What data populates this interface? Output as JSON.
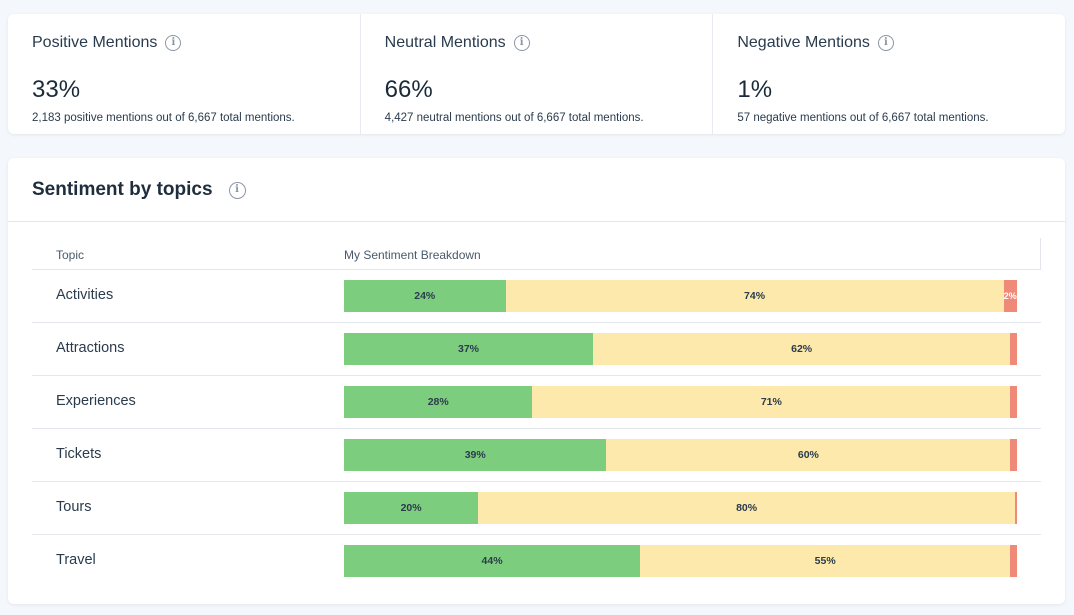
{
  "metrics": [
    {
      "title": "Positive Mentions",
      "value": "33%",
      "desc": "2,183 positive mentions out of 6,667 total mentions."
    },
    {
      "title": "Neutral Mentions",
      "value": "66%",
      "desc": "4,427 neutral mentions out of 6,667 total mentions."
    },
    {
      "title": "Negative Mentions",
      "value": "1%",
      "desc": "57 negative mentions out of 6,667 total mentions."
    }
  ],
  "panel": {
    "title": "Sentiment by topics",
    "columns": {
      "topic": "Topic",
      "breakdown": "My Sentiment Breakdown"
    }
  },
  "colors": {
    "positive": "#7dcd7e",
    "neutral": "#fde9ac",
    "negative": "#f08a78"
  },
  "rows": [
    {
      "topic": "Activities",
      "positive": 24,
      "neutral": 74,
      "negative": 2,
      "labels": [
        "24%",
        "74%",
        "2%"
      ]
    },
    {
      "topic": "Attractions",
      "positive": 37,
      "neutral": 62,
      "negative": 1,
      "labels": [
        "37%",
        "62%",
        ""
      ]
    },
    {
      "topic": "Experiences",
      "positive": 28,
      "neutral": 71,
      "negative": 1,
      "labels": [
        "28%",
        "71%",
        ""
      ]
    },
    {
      "topic": "Tickets",
      "positive": 39,
      "neutral": 60,
      "negative": 1,
      "labels": [
        "39%",
        "60%",
        ""
      ]
    },
    {
      "topic": "Tours",
      "positive": 20,
      "neutral": 80,
      "negative": 0.3,
      "labels": [
        "20%",
        "80%",
        ""
      ]
    },
    {
      "topic": "Travel",
      "positive": 44,
      "neutral": 55,
      "negative": 1,
      "labels": [
        "44%",
        "55%",
        ""
      ]
    }
  ]
}
